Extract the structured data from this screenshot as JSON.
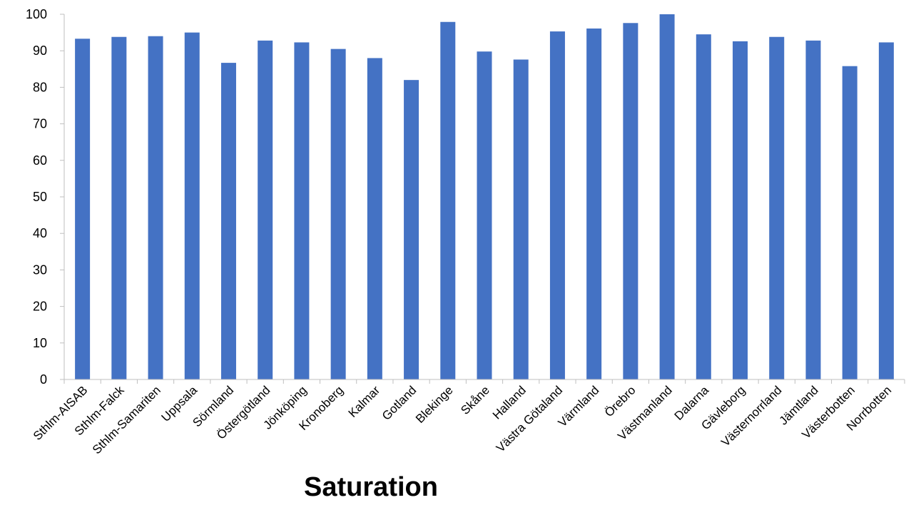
{
  "chart_data": {
    "type": "bar",
    "title": "",
    "xlabel": "Saturation",
    "ylabel": "",
    "ylim": [
      0,
      100
    ],
    "yticks": [
      0,
      10,
      20,
      30,
      40,
      50,
      60,
      70,
      80,
      90,
      100
    ],
    "grid": false,
    "legend": "none",
    "bar_color": "#4472C4",
    "categories": [
      "Sthlm-AISAB",
      "Sthlm-Falck",
      "Sthlm-Samariten",
      "Uppsala",
      "Sörmland",
      "Östergötland",
      "Jönköping",
      "Kronoberg",
      "Kalmar",
      "Gotland",
      "Blekinge",
      "Skåne",
      "Halland",
      "Västra Götaland",
      "Värmland",
      "Örebro",
      "Västmanland",
      "Dalarna",
      "Gävleborg",
      "Västernorrland",
      "Jämtland",
      "Västerbotten",
      "Norrbotten"
    ],
    "values": [
      93.3,
      93.8,
      94.0,
      95.0,
      86.7,
      92.8,
      92.3,
      90.5,
      88.0,
      82.0,
      97.9,
      89.8,
      87.6,
      95.3,
      96.1,
      97.6,
      100.0,
      94.5,
      92.6,
      93.8,
      92.8,
      85.8,
      92.3
    ]
  }
}
